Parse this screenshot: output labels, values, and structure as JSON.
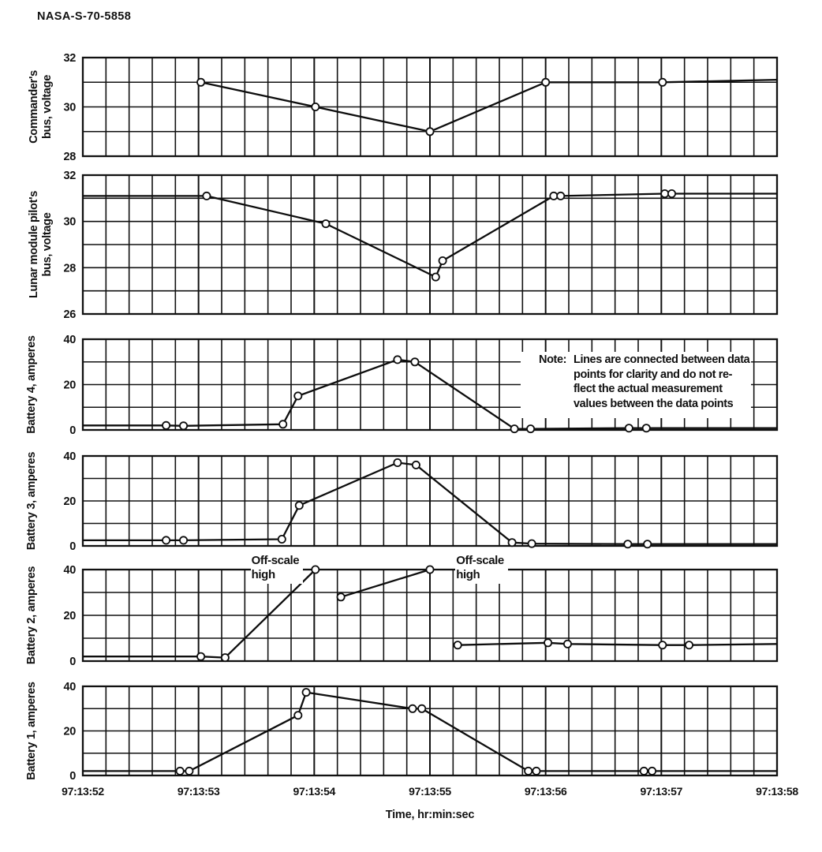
{
  "header": {
    "report_id": "NASA-S-70-5858"
  },
  "chart_data": {
    "type": "line",
    "description": "Six stacked time-history strip-chart panels of spacecraft bus voltages and battery currents",
    "x_axis": {
      "label": "Time, hr:min:sec",
      "tick_labels": [
        "97:13:52",
        "97:13:53",
        "97:13:54",
        "97:13:55",
        "97:13:56",
        "97:13:57",
        "97:13:58"
      ],
      "range_seconds": [
        0,
        6
      ],
      "x_unit": "seconds after 97:13:52",
      "minor_grid_step_seconds": 0.2,
      "grid": true
    },
    "note": {
      "prefix": "Note:",
      "lines": [
        "Lines are connected between data",
        "points for clarity and do not re-",
        "flect the actual measurement",
        "values between the data points"
      ]
    },
    "panels": [
      {
        "name": "commanders-bus-voltage",
        "ylabel": "Commander's bus, voltage",
        "ylabel_lines": [
          "Commander's",
          "bus, voltage"
        ],
        "ylim": [
          28,
          32
        ],
        "yticks": [
          28,
          30,
          32
        ],
        "ygrid_step": 1,
        "series": {
          "marker": "open-circle",
          "segments": [
            [
              [
                1.02,
                31
              ],
              [
                2.01,
                30
              ],
              [
                3.0,
                29
              ],
              [
                4.0,
                31
              ],
              [
                5.01,
                31
              ],
              [
                6.0,
                31.1
              ]
            ]
          ],
          "markers": [
            [
              1.02,
              31
            ],
            [
              2.01,
              30
            ],
            [
              3.0,
              29
            ],
            [
              4.0,
              31
            ],
            [
              5.01,
              31
            ]
          ]
        }
      },
      {
        "name": "lunar-module-pilots-bus-voltage",
        "ylabel": "Lunar module pilot's bus, voltage",
        "ylabel_lines": [
          "Lunar module pilot's",
          "bus, voltage"
        ],
        "ylim": [
          26,
          32
        ],
        "yticks": [
          26,
          28,
          30,
          32
        ],
        "ygrid_step": 1,
        "series": {
          "marker": "open-circle",
          "segments": [
            [
              [
                0,
                31.1
              ],
              [
                1.07,
                31.1
              ],
              [
                2.1,
                29.9
              ],
              [
                3.05,
                27.6
              ],
              [
                3.11,
                28.3
              ],
              [
                4.07,
                31.1
              ],
              [
                4.13,
                31.1
              ],
              [
                5.03,
                31.2
              ],
              [
                6.0,
                31.2
              ]
            ]
          ],
          "markers": [
            [
              1.07,
              31.1
            ],
            [
              2.1,
              29.9
            ],
            [
              3.05,
              27.6
            ],
            [
              3.11,
              28.3
            ],
            [
              4.07,
              31.1
            ],
            [
              4.13,
              31.1
            ],
            [
              5.03,
              31.2
            ],
            [
              5.09,
              31.2
            ]
          ]
        }
      },
      {
        "name": "battery-4-amperes",
        "ylabel": "Battery 4, amperes",
        "ylabel_lines": [
          "Battery 4, amperes"
        ],
        "ylim": [
          0,
          40
        ],
        "yticks": [
          0,
          20,
          40
        ],
        "ygrid_step": 10,
        "series": {
          "marker": "open-circle",
          "segments": [
            [
              [
                0,
                2
              ],
              [
                0.72,
                2
              ],
              [
                0.87,
                1.8
              ],
              [
                1.73,
                2.5
              ],
              [
                1.86,
                15
              ],
              [
                2.72,
                31
              ],
              [
                2.87,
                30
              ],
              [
                3.73,
                0.5
              ],
              [
                3.87,
                0.5
              ],
              [
                4.72,
                0.8
              ],
              [
                4.87,
                0.8
              ],
              [
                6.0,
                0.8
              ]
            ]
          ],
          "markers": [
            [
              0.72,
              2
            ],
            [
              0.87,
              1.8
            ],
            [
              1.73,
              2.5
            ],
            [
              1.86,
              15
            ],
            [
              2.72,
              31
            ],
            [
              2.87,
              30
            ],
            [
              3.73,
              0.5
            ],
            [
              3.87,
              0.5
            ],
            [
              4.72,
              0.8
            ],
            [
              4.87,
              0.8
            ]
          ]
        }
      },
      {
        "name": "battery-3-amperes",
        "ylabel": "Battery 3, amperes",
        "ylabel_lines": [
          "Battery 3, amperes"
        ],
        "ylim": [
          0,
          40
        ],
        "yticks": [
          0,
          20,
          40
        ],
        "ygrid_step": 10,
        "series": {
          "marker": "open-circle",
          "segments": [
            [
              [
                0,
                2.5
              ],
              [
                0.72,
                2.5
              ],
              [
                0.87,
                2.5
              ],
              [
                1.72,
                3
              ],
              [
                1.87,
                18
              ],
              [
                2.72,
                37
              ],
              [
                2.88,
                36
              ],
              [
                3.71,
                1.5
              ],
              [
                3.88,
                1
              ],
              [
                4.71,
                0.8
              ],
              [
                4.88,
                0.8
              ],
              [
                6.0,
                0.8
              ]
            ]
          ],
          "markers": [
            [
              0.72,
              2.5
            ],
            [
              0.87,
              2.5
            ],
            [
              1.72,
              3
            ],
            [
              1.87,
              18
            ],
            [
              2.72,
              37
            ],
            [
              2.88,
              36
            ],
            [
              3.71,
              1.5
            ],
            [
              3.88,
              1
            ],
            [
              4.71,
              0.8
            ],
            [
              4.88,
              0.8
            ]
          ]
        }
      },
      {
        "name": "battery-2-amperes",
        "ylabel": "Battery 2, amperes",
        "ylabel_lines": [
          "Battery 2, amperes"
        ],
        "ylim": [
          0,
          40
        ],
        "yticks": [
          0,
          20,
          40
        ],
        "ygrid_step": 10,
        "series": {
          "marker": "open-circle",
          "segments": [
            [
              [
                0,
                2
              ],
              [
                1.02,
                2
              ],
              [
                1.23,
                1.5
              ],
              [
                2.01,
                40
              ]
            ],
            [
              [
                2.23,
                28
              ],
              [
                3.0,
                40
              ]
            ],
            [
              [
                3.24,
                7
              ],
              [
                4.02,
                8
              ],
              [
                4.19,
                7.5
              ],
              [
                5.01,
                7
              ],
              [
                5.24,
                7
              ],
              [
                6.0,
                7.5
              ]
            ]
          ],
          "markers": [
            [
              1.02,
              2
            ],
            [
              1.23,
              1.5
            ],
            [
              2.01,
              40
            ],
            [
              2.23,
              28
            ],
            [
              3.0,
              40
            ],
            [
              3.24,
              7
            ],
            [
              4.02,
              8
            ],
            [
              4.19,
              7.5
            ],
            [
              5.01,
              7
            ],
            [
              5.24,
              7
            ]
          ]
        },
        "annotations": [
          {
            "lines": [
              "Off-scale",
              "high"
            ],
            "t": 1.45
          },
          {
            "lines": [
              "Off-scale",
              "high"
            ],
            "t": 3.22
          }
        ]
      },
      {
        "name": "battery-1-amperes",
        "ylabel": "Battery 1, amperes",
        "ylabel_lines": [
          "Battery 1, amperes"
        ],
        "ylim": [
          0,
          40
        ],
        "yticks": [
          0,
          20,
          40
        ],
        "ygrid_step": 10,
        "series": {
          "marker": "open-circle",
          "segments": [
            [
              [
                0,
                2
              ],
              [
                0.84,
                2
              ],
              [
                0.92,
                2
              ],
              [
                1.86,
                27
              ],
              [
                1.93,
                37.3
              ],
              [
                2.85,
                30
              ],
              [
                2.93,
                30
              ],
              [
                3.85,
                2
              ],
              [
                3.92,
                2
              ],
              [
                4.85,
                2
              ],
              [
                4.92,
                2
              ],
              [
                6.0,
                2
              ]
            ]
          ],
          "markers": [
            [
              0.84,
              2
            ],
            [
              0.92,
              2
            ],
            [
              1.86,
              27
            ],
            [
              1.93,
              37.3
            ],
            [
              2.85,
              30
            ],
            [
              2.93,
              30
            ],
            [
              3.85,
              2
            ],
            [
              3.92,
              2
            ],
            [
              4.85,
              2
            ],
            [
              4.92,
              2
            ]
          ]
        }
      }
    ]
  }
}
